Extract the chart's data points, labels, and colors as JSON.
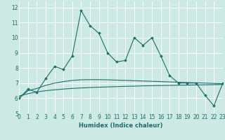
{
  "xlabel": "Humidex (Indice chaleur)",
  "bg_color": "#cce9e4",
  "grid_color": "#ffffff",
  "line_color": "#1a7068",
  "xlim": [
    0,
    23
  ],
  "ylim": [
    5,
    12.4
  ],
  "yticks": [
    5,
    6,
    7,
    8,
    9,
    10,
    11,
    12
  ],
  "xticks": [
    0,
    1,
    2,
    3,
    4,
    5,
    6,
    7,
    8,
    9,
    10,
    11,
    12,
    13,
    14,
    15,
    16,
    17,
    18,
    19,
    20,
    21,
    22,
    23
  ],
  "main_x": [
    0,
    1,
    2,
    3,
    4,
    5,
    6,
    7,
    8,
    9,
    10,
    11,
    12,
    13,
    14,
    15,
    16,
    17,
    18,
    19,
    20,
    21,
    22,
    23
  ],
  "main_y": [
    6.0,
    6.6,
    6.4,
    7.3,
    8.1,
    7.9,
    8.8,
    11.8,
    10.8,
    10.3,
    9.0,
    8.4,
    8.5,
    10.0,
    9.5,
    10.0,
    8.8,
    7.5,
    7.0,
    7.0,
    7.0,
    6.2,
    5.5,
    7.0
  ],
  "smooth1_x": [
    0,
    1,
    2,
    3,
    4,
    5,
    6,
    7,
    8,
    9,
    10,
    11,
    12,
    13,
    14,
    15,
    16,
    17,
    18,
    19,
    20,
    21,
    22,
    23
  ],
  "smooth1_y": [
    6.0,
    6.5,
    6.65,
    6.85,
    7.0,
    7.1,
    7.18,
    7.22,
    7.23,
    7.23,
    7.22,
    7.2,
    7.18,
    7.16,
    7.14,
    7.12,
    7.1,
    7.08,
    7.06,
    7.04,
    7.02,
    7.0,
    6.98,
    6.96
  ],
  "smooth2_x": [
    0,
    1,
    2,
    3,
    4,
    5,
    6,
    7,
    8,
    9,
    10,
    11,
    12,
    13,
    14,
    15,
    16,
    17,
    18,
    19,
    20,
    21,
    22,
    23
  ],
  "smooth2_y": [
    6.15,
    6.3,
    6.42,
    6.5,
    6.56,
    6.61,
    6.65,
    6.68,
    6.71,
    6.73,
    6.75,
    6.77,
    6.79,
    6.8,
    6.82,
    6.83,
    6.84,
    6.85,
    6.86,
    6.87,
    6.88,
    6.89,
    6.9,
    6.91
  ]
}
